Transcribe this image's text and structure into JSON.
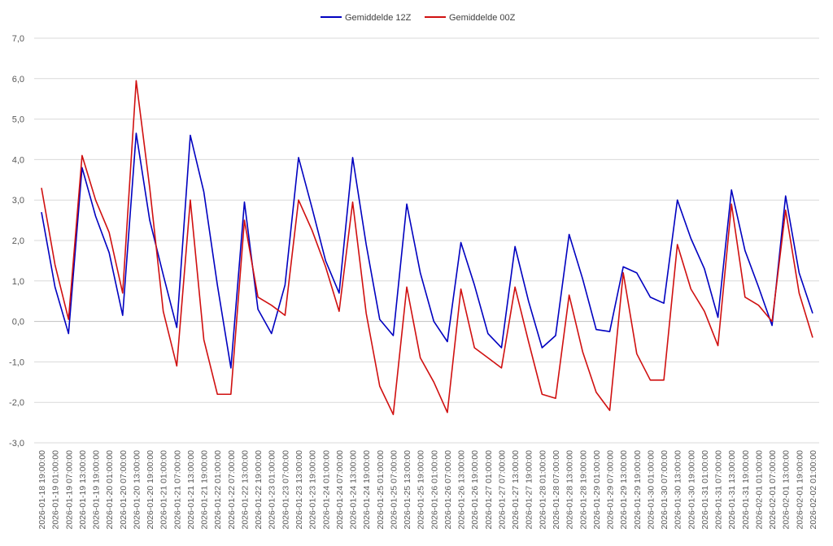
{
  "chart_data": {
    "type": "line",
    "title": "",
    "xlabel": "",
    "ylabel": "",
    "ylim": [
      -3,
      7
    ],
    "y_ticks": [
      "-3,0",
      "-2,0",
      "-1,0",
      "0,0",
      "1,0",
      "2,0",
      "3,0",
      "4,0",
      "5,0",
      "6,0",
      "7,0"
    ],
    "grid": "horizontal",
    "legend_position": "top-center",
    "x": [
      "2026-01-18 19:00:00",
      "2026-01-19 01:00:00",
      "2026-01-19 07:00:00",
      "2026-01-19 13:00:00",
      "2026-01-19 19:00:00",
      "2026-01-20 01:00:00",
      "2026-01-20 07:00:00",
      "2026-01-20 13:00:00",
      "2026-01-20 19:00:00",
      "2026-01-21 01:00:00",
      "2026-01-21 07:00:00",
      "2026-01-21 13:00:00",
      "2026-01-21 19:00:00",
      "2026-01-22 01:00:00",
      "2026-01-22 07:00:00",
      "2026-01-22 13:00:00",
      "2026-01-22 19:00:00",
      "2026-01-23 01:00:00",
      "2026-01-23 07:00:00",
      "2026-01-23 13:00:00",
      "2026-01-23 19:00:00",
      "2026-01-24 01:00:00",
      "2026-01-24 07:00:00",
      "2026-01-24 13:00:00",
      "2026-01-24 19:00:00",
      "2026-01-25 01:00:00",
      "2026-01-25 07:00:00",
      "2026-01-25 13:00:00",
      "2026-01-25 19:00:00",
      "2026-01-26 01:00:00",
      "2026-01-26 07:00:00",
      "2026-01-26 13:00:00",
      "2026-01-26 19:00:00",
      "2026-01-27 01:00:00",
      "2026-01-27 07:00:00",
      "2026-01-27 13:00:00",
      "2026-01-27 19:00:00",
      "2026-01-28 01:00:00",
      "2026-01-28 07:00:00",
      "2026-01-28 13:00:00",
      "2026-01-28 19:00:00",
      "2026-01-29 01:00:00",
      "2026-01-29 07:00:00",
      "2026-01-29 13:00:00",
      "2026-01-29 19:00:00",
      "2026-01-30 01:00:00",
      "2026-01-30 07:00:00",
      "2026-01-30 13:00:00",
      "2026-01-30 19:00:00",
      "2026-01-31 01:00:00",
      "2026-01-31 07:00:00",
      "2026-01-31 13:00:00",
      "2026-01-31 19:00:00",
      "2026-02-01 01:00:00",
      "2026-02-01 07:00:00",
      "2026-02-01 13:00:00",
      "2026-02-01 19:00:00",
      "2026-02-02 01:00:00"
    ],
    "series": [
      {
        "name": "Gemiddelde 12Z",
        "color": "#0000c0",
        "values": [
          2.7,
          0.85,
          -0.3,
          3.8,
          2.6,
          1.7,
          0.15,
          4.65,
          2.5,
          1.15,
          -0.15,
          4.6,
          3.2,
          0.9,
          -1.15,
          2.95,
          0.3,
          -0.3,
          0.9,
          4.05,
          2.8,
          1.5,
          0.7,
          4.05,
          1.9,
          0.05,
          -0.35,
          2.9,
          1.2,
          0.0,
          -0.5,
          1.95,
          0.9,
          -0.3,
          -0.65,
          1.85,
          0.5,
          -0.65,
          -0.35,
          2.15,
          1.05,
          -0.2,
          -0.25,
          1.35,
          1.2,
          0.6,
          0.45,
          3.0,
          2.05,
          1.3,
          0.1,
          3.25,
          1.75,
          0.85,
          -0.1,
          3.1,
          1.2,
          0.2
        ]
      },
      {
        "name": "Gemiddelde 00Z",
        "color": "#d01010",
        "values": [
          3.3,
          1.4,
          0.05,
          4.1,
          3.0,
          2.2,
          0.7,
          5.95,
          3.3,
          0.25,
          -1.1,
          3.0,
          -0.45,
          -1.8,
          -1.8,
          2.5,
          0.6,
          0.4,
          0.15,
          3.0,
          2.25,
          1.35,
          0.25,
          2.95,
          0.2,
          -1.6,
          -2.3,
          0.85,
          -0.9,
          -1.5,
          -2.25,
          0.8,
          -0.65,
          -0.9,
          -1.15,
          0.85,
          -0.5,
          -1.8,
          -1.9,
          0.65,
          -0.75,
          -1.75,
          -2.2,
          1.2,
          -0.8,
          -1.45,
          -1.45,
          1.9,
          0.8,
          0.25,
          -0.6,
          2.9,
          0.6,
          0.4,
          0.0,
          2.75,
          0.7,
          -0.4
        ]
      }
    ],
    "gridline_color": "#d9d9d9",
    "axis_line_color": "#bfbfbf"
  }
}
